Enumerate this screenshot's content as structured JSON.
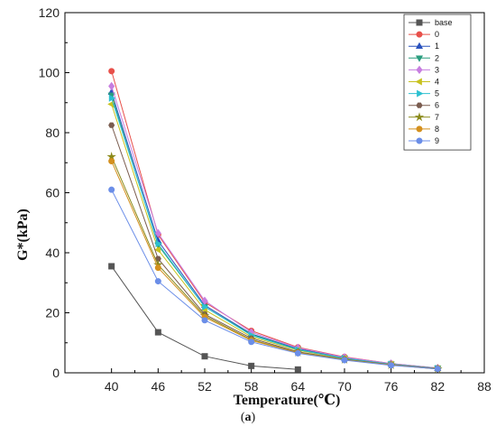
{
  "caption": {
    "open": "(",
    "letter": "a",
    "close": ")"
  },
  "chart_data": {
    "type": "line",
    "title": "",
    "xlabel": "Temperature(℃)",
    "ylabel": "G*(kPa)",
    "xlim": [
      34,
      88
    ],
    "ylim": [
      0,
      120
    ],
    "xticks": [
      40,
      46,
      52,
      58,
      64,
      70,
      76,
      82,
      88
    ],
    "yticks": [
      0,
      20,
      40,
      60,
      80,
      100,
      120
    ],
    "grid": false,
    "legend_position": "top-right",
    "series": [
      {
        "name": "base",
        "color": "#555555",
        "marker": "square",
        "x": [
          40,
          46,
          52,
          58,
          64
        ],
        "y": [
          35.5,
          13.5,
          5.5,
          2.3,
          1.1
        ]
      },
      {
        "name": "0",
        "color": "#e8504a",
        "marker": "circle",
        "x": [
          40,
          46,
          52,
          58,
          64,
          70,
          76,
          82
        ],
        "y": [
          100.5,
          46,
          23.5,
          14,
          8.5,
          5.3,
          3.1,
          1.6
        ]
      },
      {
        "name": "1",
        "color": "#2a52be",
        "marker": "triangle-up",
        "x": [
          40,
          46,
          52,
          58,
          64,
          70,
          76,
          82
        ],
        "y": [
          93.5,
          44,
          22.5,
          13,
          8,
          5,
          3,
          1.5
        ]
      },
      {
        "name": "2",
        "color": "#2a9d7f",
        "marker": "triangle-down",
        "x": [
          40,
          46,
          52,
          58,
          64,
          70,
          76,
          82
        ],
        "y": [
          92.5,
          42.5,
          22,
          12.8,
          7.8,
          4.9,
          2.9,
          1.5
        ]
      },
      {
        "name": "3",
        "color": "#c77ee0",
        "marker": "diamond",
        "x": [
          40,
          46,
          52,
          58,
          64,
          70,
          76,
          82
        ],
        "y": [
          95.5,
          46.5,
          24,
          13.5,
          8.3,
          5.2,
          3.1,
          1.6
        ]
      },
      {
        "name": "4",
        "color": "#c8c21f",
        "marker": "triangle-left",
        "x": [
          40,
          46,
          52,
          58,
          64,
          70,
          76,
          82
        ],
        "y": [
          89.5,
          41,
          21,
          12,
          7.5,
          4.7,
          2.8,
          1.4
        ]
      },
      {
        "name": "5",
        "color": "#2cc0d0",
        "marker": "triangle-right",
        "x": [
          40,
          46,
          52,
          58,
          64,
          70,
          76,
          82
        ],
        "y": [
          91.5,
          43,
          22,
          12.5,
          7.7,
          4.8,
          2.9,
          1.5
        ]
      },
      {
        "name": "6",
        "color": "#7a5c4f",
        "marker": "hexagon",
        "x": [
          40,
          46,
          52,
          58,
          64,
          70,
          76,
          82
        ],
        "y": [
          82.5,
          38,
          19.5,
          11.5,
          7,
          4.5,
          2.7,
          1.4
        ]
      },
      {
        "name": "7",
        "color": "#8a8a1a",
        "marker": "star",
        "x": [
          40,
          46,
          52,
          58,
          64,
          70,
          76,
          82
        ],
        "y": [
          72,
          36,
          19,
          11,
          6.8,
          4.4,
          2.6,
          1.3
        ]
      },
      {
        "name": "8",
        "color": "#d4901e",
        "marker": "circle",
        "x": [
          40,
          46,
          52,
          58,
          64,
          70,
          76,
          82
        ],
        "y": [
          70.5,
          35,
          18.5,
          10.8,
          6.7,
          4.3,
          2.6,
          1.3
        ]
      },
      {
        "name": "9",
        "color": "#6b8ee8",
        "marker": "circle",
        "x": [
          40,
          46,
          52,
          58,
          64,
          70,
          76,
          82
        ],
        "y": [
          61,
          30.5,
          17.5,
          10.3,
          6.5,
          4.2,
          2.5,
          1.3
        ]
      }
    ]
  }
}
